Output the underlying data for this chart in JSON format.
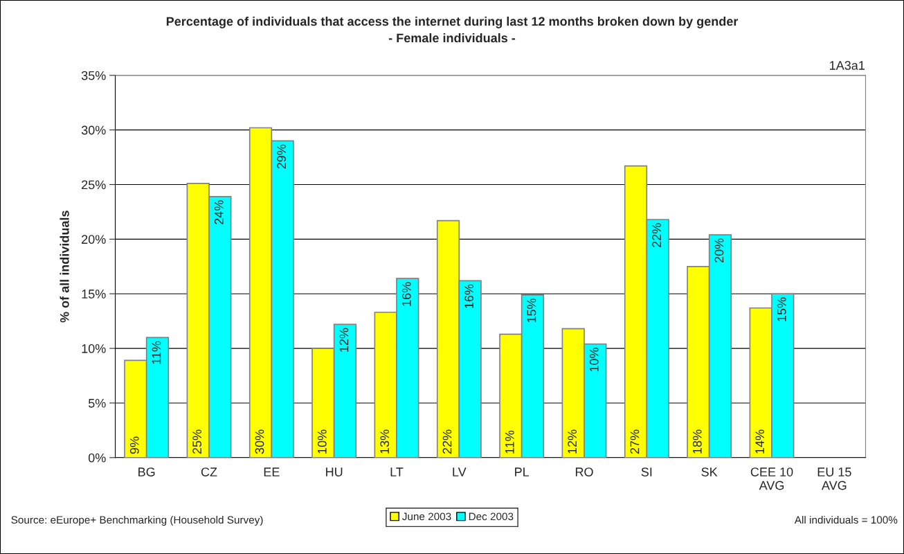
{
  "chart_data": {
    "type": "bar",
    "title": "Percentage of individuals that access the internet during last 12 months broken down by gender",
    "subtitle": "- Female individuals -",
    "ylabel": "% of all individuals",
    "categories": [
      "BG",
      "CZ",
      "EE",
      "HU",
      "LT",
      "LV",
      "PL",
      "RO",
      "SI",
      "SK",
      "CEE 10\nAVG",
      "EU 15\nAVG"
    ],
    "series": [
      {
        "name": "June 2003",
        "color": "#ffff00",
        "values": [
          8.9,
          25.1,
          30.2,
          10.0,
          13.3,
          21.7,
          11.3,
          11.8,
          26.7,
          17.5,
          13.7,
          null
        ],
        "value_labels": [
          "9%",
          "25%",
          "30%",
          "10%",
          "13%",
          "22%",
          "11%",
          "12%",
          "27%",
          "18%",
          "14%",
          null
        ]
      },
      {
        "name": "Dec 2003",
        "color": "#00ffff",
        "values": [
          11.0,
          23.9,
          29.0,
          12.2,
          16.4,
          16.2,
          14.9,
          10.4,
          21.8,
          20.4,
          15.0,
          null
        ],
        "value_labels": [
          "11%",
          "24%",
          "29%",
          "12%",
          "16%",
          "16%",
          "15%",
          "10%",
          "22%",
          "20%",
          "15%",
          null
        ]
      }
    ],
    "ylim": [
      0,
      35
    ],
    "yticks": [
      {
        "value": 0,
        "label": "0%"
      },
      {
        "value": 5,
        "label": "5%"
      },
      {
        "value": 10,
        "label": "10%"
      },
      {
        "value": 15,
        "label": "15%"
      },
      {
        "value": 20,
        "label": "20%"
      },
      {
        "value": 25,
        "label": "25%"
      },
      {
        "value": 30,
        "label": "30%"
      },
      {
        "value": 35,
        "label": "35%"
      }
    ],
    "grid": "y",
    "legend": "bottom",
    "annotations": [
      "1A3a1",
      "Source: eEurope+ Benchmarking (Household Survey)",
      "All individuals = 100%"
    ]
  }
}
